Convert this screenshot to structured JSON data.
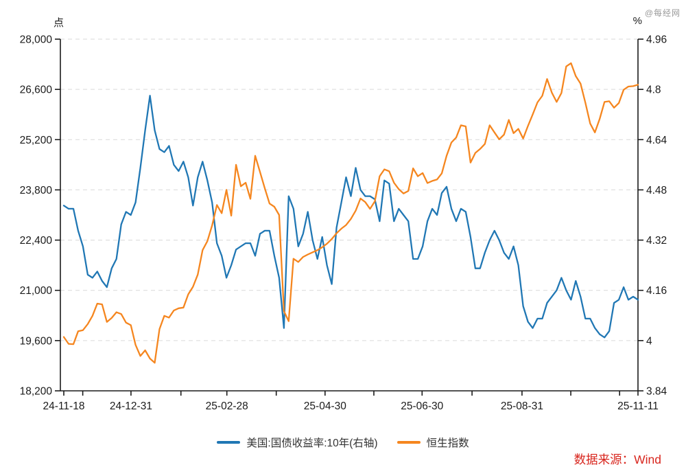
{
  "header": {
    "left_axis_unit": "点",
    "right_axis_unit": "%",
    "watermark": "@每经网"
  },
  "legend": [
    {
      "label": "美国:国债收益率:10年(右轴)",
      "color": "#2077b4"
    },
    {
      "label": "恒生指数",
      "color": "#f5861f"
    }
  ],
  "source_note": "数据来源：Wind",
  "chart_data": {
    "type": "line",
    "title": "",
    "grid": {
      "horizontal_dashed": true,
      "color": "#d9d9d9"
    },
    "axis_color": "#1a1a1a",
    "x_axis": {
      "start_label": "24-11-18",
      "end_label": "25-11-11",
      "ticks": [
        {
          "t": 0.0,
          "label": "24-11-18"
        },
        {
          "t": 0.033
        },
        {
          "t": 0.117,
          "label": "24-12-31"
        },
        {
          "t": 0.204
        },
        {
          "t": 0.284,
          "label": "25-02-28"
        },
        {
          "t": 0.37
        },
        {
          "t": 0.455,
          "label": "25-04-30"
        },
        {
          "t": 0.54
        },
        {
          "t": 0.624,
          "label": "25-06-30"
        },
        {
          "t": 0.711
        },
        {
          "t": 0.798,
          "label": "25-08-31"
        },
        {
          "t": 0.883
        },
        {
          "t": 0.968
        },
        {
          "t": 1.0,
          "label": "25-11-11"
        }
      ]
    },
    "left_axis": {
      "unit": "点",
      "min": 18200,
      "max": 28000,
      "ticks": [
        28000,
        26600,
        25200,
        23800,
        22400,
        21000,
        19600,
        18200
      ],
      "tick_labels": [
        "28,000",
        "26,600",
        "25,200",
        "23,800",
        "22,400",
        "21,000",
        "19,600",
        "18,200"
      ]
    },
    "right_axis": {
      "unit": "%",
      "min": 3.84,
      "max": 4.96,
      "ticks": [
        4.96,
        4.8,
        4.64,
        4.48,
        4.32,
        4.16,
        4,
        3.84
      ],
      "tick_labels": [
        "4.96",
        "4.8",
        "4.64",
        "4.48",
        "4.32",
        "4.16",
        "4",
        "3.84"
      ]
    },
    "series": [
      {
        "name": "恒生指数",
        "axis": "left",
        "color": "#f5861f",
        "values": [
          19700,
          19510,
          19500,
          19860,
          19890,
          20060,
          20290,
          20630,
          20610,
          20120,
          20230,
          20390,
          20340,
          20100,
          20030,
          19480,
          19170,
          19330,
          19100,
          18980,
          19920,
          20290,
          20240,
          20440,
          20500,
          20520,
          20890,
          21100,
          21440,
          22120,
          22370,
          22810,
          23380,
          23150,
          23800,
          23080,
          24500,
          23900,
          24000,
          23550,
          24750,
          24300,
          23850,
          23420,
          23330,
          23100,
          20420,
          20140,
          21880,
          21790,
          21930,
          22000,
          22060,
          22120,
          22200,
          22300,
          22430,
          22590,
          22720,
          22820,
          22990,
          23220,
          23560,
          23460,
          23270,
          23480,
          24180,
          24370,
          24320,
          24000,
          23820,
          23700,
          23770,
          24400,
          24180,
          24270,
          23990,
          24050,
          24090,
          24260,
          24750,
          25120,
          25260,
          25600,
          25570,
          24560,
          24830,
          24940,
          25080,
          25600,
          25400,
          25210,
          25340,
          25750,
          25380,
          25500,
          25230,
          25580,
          25900,
          26240,
          26420,
          26890,
          26510,
          26250,
          26500,
          27240,
          27330,
          26970,
          26760,
          26230,
          25650,
          25400,
          25780,
          26250,
          26270,
          26090,
          26220,
          26590,
          26680,
          26690,
          26730
        ]
      },
      {
        "name": "美国:国债收益率:10年(右轴)",
        "axis": "right",
        "color": "#2077b4",
        "values": [
          4.43,
          4.42,
          4.42,
          4.35,
          4.3,
          4.21,
          4.2,
          4.22,
          4.19,
          4.17,
          4.23,
          4.26,
          4.37,
          4.41,
          4.4,
          4.44,
          4.55,
          4.67,
          4.78,
          4.67,
          4.61,
          4.6,
          4.62,
          4.56,
          4.54,
          4.57,
          4.52,
          4.43,
          4.52,
          4.57,
          4.51,
          4.44,
          4.31,
          4.27,
          4.2,
          4.24,
          4.29,
          4.3,
          4.31,
          4.31,
          4.27,
          4.34,
          4.35,
          4.35,
          4.27,
          4.2,
          4.04,
          4.46,
          4.42,
          4.3,
          4.34,
          4.41,
          4.32,
          4.26,
          4.33,
          4.24,
          4.18,
          4.36,
          4.44,
          4.52,
          4.46,
          4.55,
          4.48,
          4.46,
          4.46,
          4.45,
          4.38,
          4.51,
          4.5,
          4.38,
          4.42,
          4.4,
          4.38,
          4.26,
          4.26,
          4.3,
          4.38,
          4.42,
          4.4,
          4.47,
          4.49,
          4.42,
          4.38,
          4.42,
          4.41,
          4.33,
          4.23,
          4.23,
          4.28,
          4.32,
          4.35,
          4.32,
          4.28,
          4.26,
          4.3,
          4.24,
          4.11,
          4.06,
          4.04,
          4.07,
          4.07,
          4.12,
          4.14,
          4.16,
          4.2,
          4.16,
          4.13,
          4.19,
          4.14,
          4.07,
          4.07,
          4.04,
          4.02,
          4.01,
          4.03,
          4.12,
          4.13,
          4.17,
          4.13,
          4.14,
          4.13
        ]
      }
    ]
  }
}
